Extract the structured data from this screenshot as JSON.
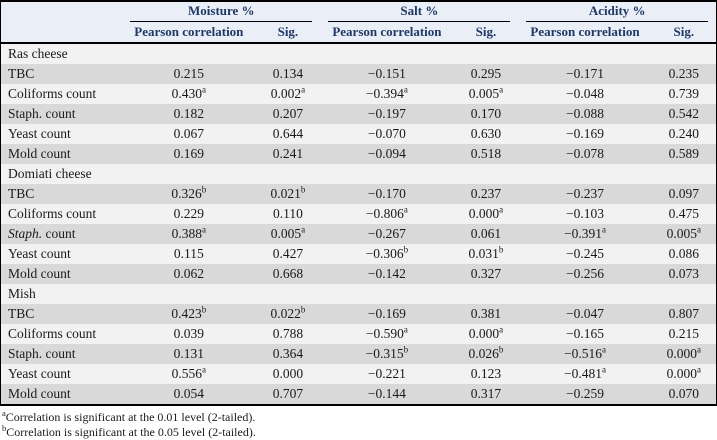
{
  "colors": {
    "header_bg": "#e9eef7",
    "header_text": "#1f3864",
    "stripe_gray": "#d9d9d9",
    "stripe_light": "#f2f2f2",
    "rule": "#000000",
    "body_text": "#1a1a1a"
  },
  "header": {
    "groups": [
      {
        "label": "Moisture %"
      },
      {
        "label": "Salt %"
      },
      {
        "label": "Acidity %"
      }
    ],
    "subheaders": {
      "pearson": "Pearson correlation",
      "sig": "Sig."
    }
  },
  "table": {
    "sections": [
      {
        "name": "Ras cheese",
        "rows": [
          {
            "label_parts": [
              {
                "text": "TBC",
                "italic": false
              }
            ],
            "cells": [
              {
                "v": "0.215",
                "sup": ""
              },
              {
                "v": "0.134",
                "sup": ""
              },
              {
                "v": "−0.151",
                "sup": ""
              },
              {
                "v": "0.295",
                "sup": ""
              },
              {
                "v": "−0.171",
                "sup": ""
              },
              {
                "v": "0.235",
                "sup": ""
              }
            ]
          },
          {
            "label_parts": [
              {
                "text": "Coliforms count",
                "italic": false
              }
            ],
            "cells": [
              {
                "v": "0.430",
                "sup": "a"
              },
              {
                "v": "0.002",
                "sup": "a"
              },
              {
                "v": "−0.394",
                "sup": "a"
              },
              {
                "v": "0.005",
                "sup": "a"
              },
              {
                "v": "−0.048",
                "sup": ""
              },
              {
                "v": "0.739",
                "sup": ""
              }
            ]
          },
          {
            "label_parts": [
              {
                "text": "Staph. count",
                "italic": false
              }
            ],
            "cells": [
              {
                "v": "0.182",
                "sup": ""
              },
              {
                "v": "0.207",
                "sup": ""
              },
              {
                "v": "−0.197",
                "sup": ""
              },
              {
                "v": "0.170",
                "sup": ""
              },
              {
                "v": "−0.088",
                "sup": ""
              },
              {
                "v": "0.542",
                "sup": ""
              }
            ]
          },
          {
            "label_parts": [
              {
                "text": "Yeast count",
                "italic": false
              }
            ],
            "cells": [
              {
                "v": "0.067",
                "sup": ""
              },
              {
                "v": "0.644",
                "sup": ""
              },
              {
                "v": "−0.070",
                "sup": ""
              },
              {
                "v": "0.630",
                "sup": ""
              },
              {
                "v": "−0.169",
                "sup": ""
              },
              {
                "v": "0.240",
                "sup": ""
              }
            ]
          },
          {
            "label_parts": [
              {
                "text": "Mold count",
                "italic": false
              }
            ],
            "cells": [
              {
                "v": "0.169",
                "sup": ""
              },
              {
                "v": "0.241",
                "sup": ""
              },
              {
                "v": "−0.094",
                "sup": ""
              },
              {
                "v": "0.518",
                "sup": ""
              },
              {
                "v": "−0.078",
                "sup": ""
              },
              {
                "v": "0.589",
                "sup": ""
              }
            ]
          }
        ]
      },
      {
        "name": "Domiati cheese",
        "rows": [
          {
            "label_parts": [
              {
                "text": "TBC",
                "italic": false
              }
            ],
            "cells": [
              {
                "v": "0.326",
                "sup": "b"
              },
              {
                "v": "0.021",
                "sup": "b"
              },
              {
                "v": "−0.170",
                "sup": ""
              },
              {
                "v": "0.237",
                "sup": ""
              },
              {
                "v": "−0.237",
                "sup": ""
              },
              {
                "v": "0.097",
                "sup": ""
              }
            ]
          },
          {
            "label_parts": [
              {
                "text": "Coliforms count",
                "italic": false
              }
            ],
            "cells": [
              {
                "v": "0.229",
                "sup": ""
              },
              {
                "v": "0.110",
                "sup": ""
              },
              {
                "v": "−0.806",
                "sup": "a"
              },
              {
                "v": "0.000",
                "sup": "a"
              },
              {
                "v": "−0.103",
                "sup": ""
              },
              {
                "v": "0.475",
                "sup": ""
              }
            ]
          },
          {
            "label_parts": [
              {
                "text": "Staph.",
                "italic": true
              },
              {
                "text": " count",
                "italic": false
              }
            ],
            "cells": [
              {
                "v": "0.388",
                "sup": "a"
              },
              {
                "v": "0.005",
                "sup": "a"
              },
              {
                "v": "−0.267",
                "sup": ""
              },
              {
                "v": "0.061",
                "sup": ""
              },
              {
                "v": "−0.391",
                "sup": "a"
              },
              {
                "v": "0.005",
                "sup": "a"
              }
            ]
          },
          {
            "label_parts": [
              {
                "text": "Yeast count",
                "italic": false
              }
            ],
            "cells": [
              {
                "v": "0.115",
                "sup": ""
              },
              {
                "v": "0.427",
                "sup": ""
              },
              {
                "v": "−0.306",
                "sup": "b"
              },
              {
                "v": "0.031",
                "sup": "b"
              },
              {
                "v": "−0.245",
                "sup": ""
              },
              {
                "v": "0.086",
                "sup": ""
              }
            ]
          },
          {
            "label_parts": [
              {
                "text": "Mold count",
                "italic": false
              }
            ],
            "cells": [
              {
                "v": "0.062",
                "sup": ""
              },
              {
                "v": "0.668",
                "sup": ""
              },
              {
                "v": "−0.142",
                "sup": ""
              },
              {
                "v": "0.327",
                "sup": ""
              },
              {
                "v": "−0.256",
                "sup": ""
              },
              {
                "v": "0.073",
                "sup": ""
              }
            ]
          }
        ]
      },
      {
        "name": "Mish",
        "rows": [
          {
            "label_parts": [
              {
                "text": "TBC",
                "italic": false
              }
            ],
            "cells": [
              {
                "v": "0.423",
                "sup": "b"
              },
              {
                "v": "0.022",
                "sup": "b"
              },
              {
                "v": "−0.169",
                "sup": ""
              },
              {
                "v": "0.381",
                "sup": ""
              },
              {
                "v": "−0.047",
                "sup": ""
              },
              {
                "v": "0.807",
                "sup": ""
              }
            ]
          },
          {
            "label_parts": [
              {
                "text": "Coliforms count",
                "italic": false
              }
            ],
            "cells": [
              {
                "v": "0.039",
                "sup": ""
              },
              {
                "v": "0.788",
                "sup": ""
              },
              {
                "v": "−0.590",
                "sup": "a"
              },
              {
                "v": "0.000",
                "sup": "a"
              },
              {
                "v": "−0.165",
                "sup": ""
              },
              {
                "v": "0.215",
                "sup": ""
              }
            ]
          },
          {
            "label_parts": [
              {
                "text": "Staph. count",
                "italic": false
              }
            ],
            "cells": [
              {
                "v": "0.131",
                "sup": ""
              },
              {
                "v": "0.364",
                "sup": ""
              },
              {
                "v": "−0.315",
                "sup": "b"
              },
              {
                "v": "0.026",
                "sup": "b"
              },
              {
                "v": "−0.516",
                "sup": "a"
              },
              {
                "v": "0.000",
                "sup": "a"
              }
            ]
          },
          {
            "label_parts": [
              {
                "text": "Yeast count",
                "italic": false
              }
            ],
            "cells": [
              {
                "v": "0.556",
                "sup": "a"
              },
              {
                "v": "0.000",
                "sup": ""
              },
              {
                "v": "−0.221",
                "sup": ""
              },
              {
                "v": "0.123",
                "sup": ""
              },
              {
                "v": "−0.481",
                "sup": "a"
              },
              {
                "v": "0.000",
                "sup": "a"
              }
            ]
          },
          {
            "label_parts": [
              {
                "text": "Mold count",
                "italic": false
              }
            ],
            "cells": [
              {
                "v": "0.054",
                "sup": ""
              },
              {
                "v": "0.707",
                "sup": ""
              },
              {
                "v": "−0.144",
                "sup": ""
              },
              {
                "v": "0.317",
                "sup": ""
              },
              {
                "v": "−0.259",
                "sup": ""
              },
              {
                "v": "0.070",
                "sup": ""
              }
            ]
          }
        ]
      }
    ]
  },
  "footnotes": [
    {
      "sup": "a",
      "text": "Correlation is significant at the 0.01 level (2-tailed)."
    },
    {
      "sup": "b",
      "text": "Correlation is significant at the 0.05 level (2-tailed)."
    }
  ]
}
